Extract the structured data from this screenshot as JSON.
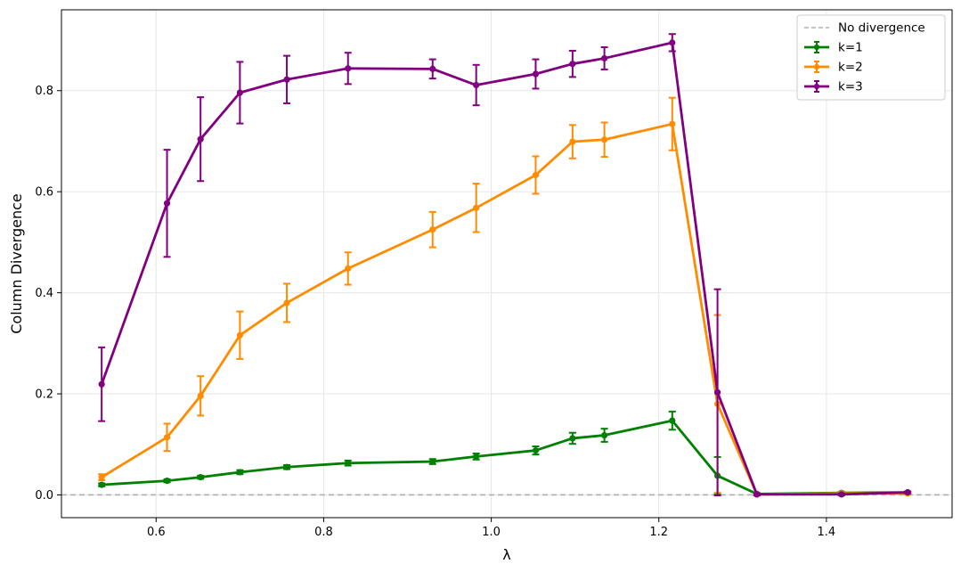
{
  "chart_data": {
    "type": "line",
    "xlabel": "λ",
    "ylabel": "Column Divergence",
    "xlim": [
      0.487,
      1.55
    ],
    "ylim": [
      -0.045,
      0.96
    ],
    "xticks": [
      "0.6",
      "0.8",
      "1.0",
      "1.2",
      "1.4"
    ],
    "yticks": [
      "0.0",
      "0.2",
      "0.4",
      "0.6",
      "0.8"
    ],
    "grid": true,
    "legend_position": "top-right",
    "reference_line": {
      "name": "No divergence",
      "y": 0.0,
      "color": "#b0b0b0",
      "style": "dashed"
    },
    "x": [
      0.535,
      0.613,
      0.653,
      0.7,
      0.756,
      0.829,
      0.93,
      0.982,
      1.053,
      1.097,
      1.135,
      1.216,
      1.27,
      1.317,
      1.418,
      1.497
    ],
    "series": [
      {
        "name": "k=1",
        "color": "#008000",
        "values": [
          0.02,
          0.028,
          0.035,
          0.045,
          0.055,
          0.063,
          0.066,
          0.076,
          0.088,
          0.112,
          0.118,
          0.147,
          0.038,
          0.002,
          0.004,
          0.005
        ],
        "errors": [
          0.003,
          0.003,
          0.003,
          0.004,
          0.004,
          0.005,
          0.005,
          0.006,
          0.008,
          0.011,
          0.013,
          0.018,
          0.037,
          0.002,
          0.002,
          0.002
        ]
      },
      {
        "name": "k=2",
        "color": "#ff8c00",
        "values": [
          0.035,
          0.114,
          0.196,
          0.316,
          0.38,
          0.448,
          0.525,
          0.568,
          0.633,
          0.699,
          0.703,
          0.734,
          0.18,
          0.001,
          0.003,
          0.003
        ],
        "errors": [
          0.006,
          0.027,
          0.039,
          0.047,
          0.038,
          0.032,
          0.035,
          0.048,
          0.037,
          0.033,
          0.034,
          0.052,
          0.176,
          0.002,
          0.002,
          0.002
        ]
      },
      {
        "name": "k=3",
        "color": "#800080",
        "values": [
          0.219,
          0.577,
          0.704,
          0.796,
          0.822,
          0.844,
          0.843,
          0.811,
          0.833,
          0.853,
          0.864,
          0.895,
          0.203,
          0.001,
          0.001,
          0.005
        ],
        "errors": [
          0.073,
          0.106,
          0.083,
          0.061,
          0.047,
          0.031,
          0.019,
          0.04,
          0.029,
          0.026,
          0.022,
          0.017,
          0.204,
          0.002,
          0.002,
          0.002
        ]
      }
    ]
  }
}
